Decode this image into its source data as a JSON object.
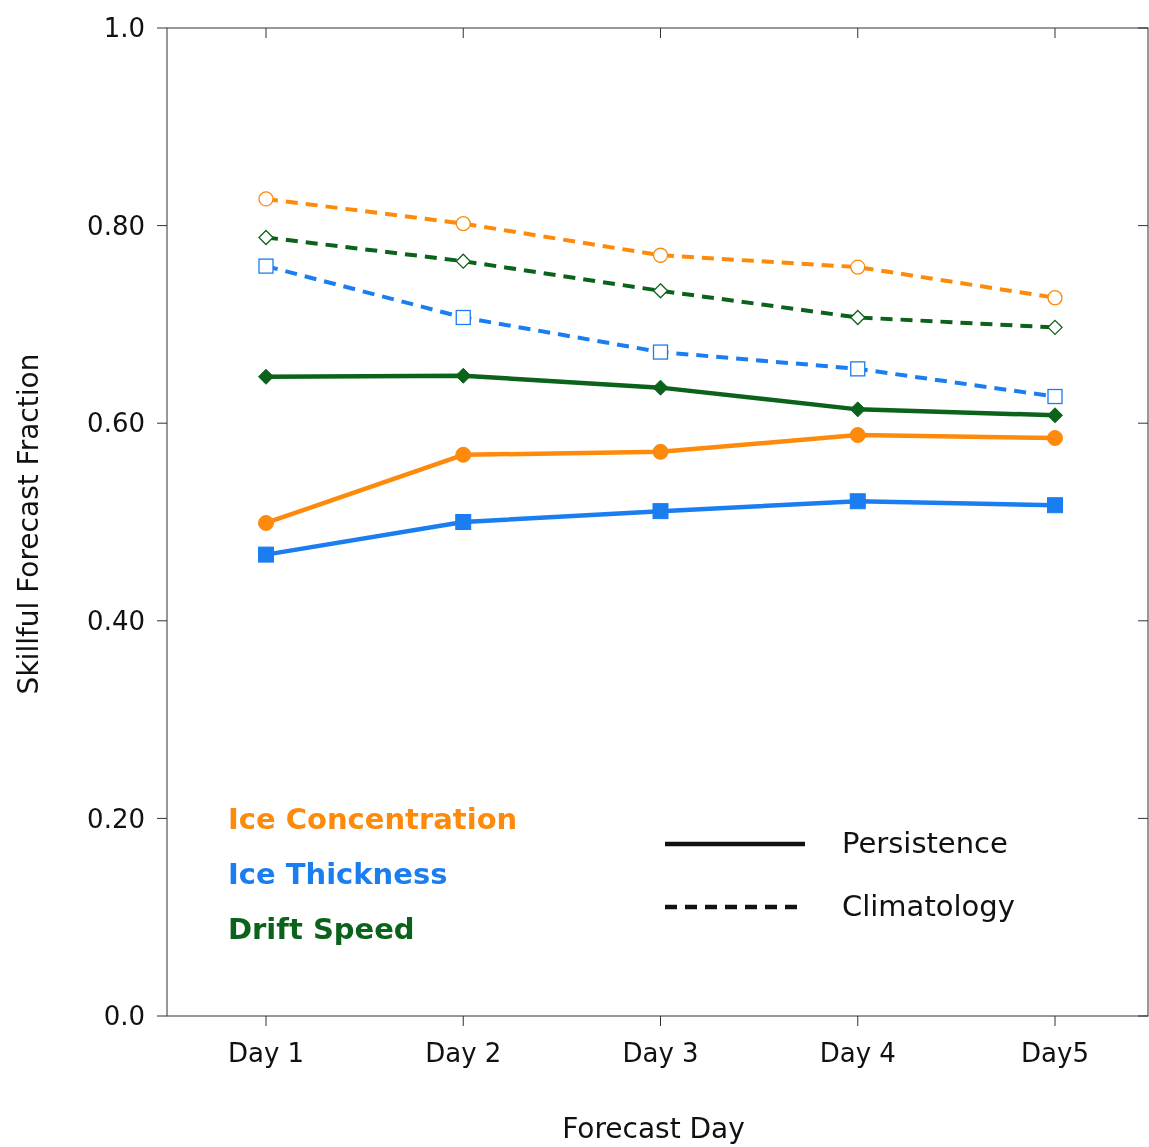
{
  "chart_data": {
    "type": "line",
    "xlabel": "Forecast Day",
    "ylabel": "Skillful Forecast Fraction",
    "categories": [
      "Day 1",
      "Day 2",
      "Day 3",
      "Day 4",
      "Day5"
    ],
    "ylim": [
      0,
      1
    ],
    "yticks": [
      {
        "value": 0,
        "label": "0.0"
      },
      {
        "value": 0.2,
        "label": "0.20"
      },
      {
        "value": 0.4,
        "label": "0.40"
      },
      {
        "value": 0.6,
        "label": "0.60"
      },
      {
        "value": 0.8,
        "label": "0.80"
      },
      {
        "value": 1,
        "label": "1.0"
      }
    ],
    "grid": false,
    "legend": "bottom left",
    "series": [
      {
        "name": "Ice Concentration",
        "color": "#fd8a0a",
        "marker": "circle",
        "line_style": "solid",
        "values": [
          0.499,
          0.568,
          0.571,
          0.588,
          0.585
        ]
      },
      {
        "name": "Ice Thickness",
        "color": "#1a7ef0",
        "marker": "square",
        "line_style": "solid",
        "values": [
          0.467,
          0.5,
          0.511,
          0.521,
          0.517
        ]
      },
      {
        "name": "Drift Speed",
        "color": "#0b621a",
        "marker": "diamond",
        "line_style": "solid",
        "values": [
          0.647,
          0.648,
          0.636,
          0.614,
          0.608
        ]
      },
      {
        "color": "#fd8a0a",
        "marker": "circle",
        "line_style": "dashed",
        "values": [
          0.827,
          0.802,
          0.77,
          0.758,
          0.727
        ]
      },
      {
        "color": "#0b621a",
        "marker": "diamond",
        "line_style": "dashed",
        "values": [
          0.788,
          0.764,
          0.734,
          0.707,
          0.697
        ]
      },
      {
        "color": "#1a7ef0",
        "marker": "square",
        "line_style": "dashed",
        "values": [
          0.759,
          0.707,
          0.672,
          0.655,
          0.627
        ]
      }
    ],
    "annotations": [
      "Persistence",
      "Climatology"
    ]
  }
}
